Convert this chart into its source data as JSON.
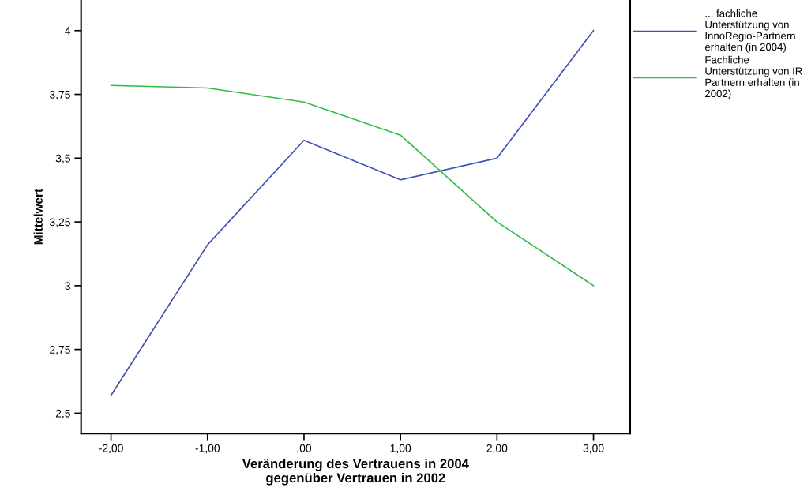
{
  "chart_data": {
    "type": "line",
    "xlabel": "Veränderung des Vertrauens in 2004\ngegenüber Vertrauen in 2002",
    "ylabel": "Mittelwert",
    "categories": [
      "-2,00",
      "-1,00",
      ",00",
      "1,00",
      "2,00",
      "3,00"
    ],
    "series": [
      {
        "name": "... fachliche Unterstützung von InnoRegio-Partnern erhalten (in 2004)",
        "color": "#3f51b5",
        "values": [
          2.57,
          3.16,
          3.57,
          3.415,
          3.5,
          4.0
        ]
      },
      {
        "name": "Fachliche Unterstützung von IR Partnern erhalten (in 2002)",
        "color": "#33bb44",
        "values": [
          3.785,
          3.775,
          3.72,
          3.59,
          3.25,
          3.0
        ]
      }
    ],
    "ylim": [
      2.42,
      4.12
    ],
    "yticks": [
      {
        "value": 2.5,
        "label": "2,5"
      },
      {
        "value": 2.75,
        "label": "2,75"
      },
      {
        "value": 3,
        "label": "3"
      },
      {
        "value": 3.25,
        "label": "3,25"
      },
      {
        "value": 3.5,
        "label": "3,5"
      },
      {
        "value": 3.75,
        "label": "3,75"
      },
      {
        "value": 4,
        "label": "4"
      }
    ],
    "grid": false,
    "legend": "right",
    "marker": "none",
    "line_style": "solid"
  }
}
